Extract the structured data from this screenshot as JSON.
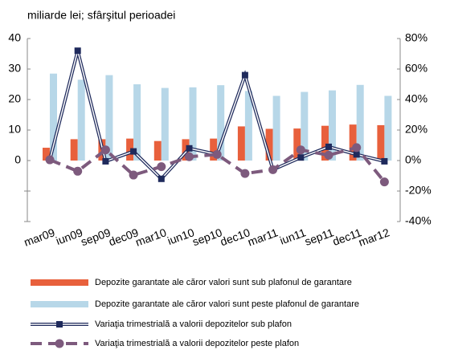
{
  "chart_data": {
    "type": "bar-line",
    "title": "miliarde lei; sfârşitul perioadei",
    "categories": [
      "mar09",
      "iun09",
      "sep09",
      "dec09",
      "mar10",
      "iun10",
      "sep10",
      "dec10",
      "mar11",
      "iun11",
      "sep11",
      "dec11",
      "mar12"
    ],
    "series": [
      {
        "name": "Depozite garantate ale căror valori sunt sub plafonul de garantare",
        "type": "bar",
        "color": "#e8603c",
        "values": [
          4.2,
          7,
          7,
          7.2,
          6.4,
          7,
          7.2,
          11.2,
          10.4,
          10.5,
          11.4,
          11.8,
          11.6
        ]
      },
      {
        "name": "Depozite garantate ale căror valori sunt peste plafonul de garantare",
        "type": "bar",
        "color": "#b7d7e8",
        "values": [
          28.5,
          26.5,
          28,
          25,
          23.8,
          24,
          24.7,
          22.8,
          21.2,
          22.5,
          23,
          24.8,
          21.2
        ]
      },
      {
        "name": "Variaţia trimestrială a valorii depozitelor sub plafon",
        "type": "line",
        "axis": "y2",
        "color": "#1f2a5c",
        "values": [
          0.5,
          72,
          -0.5,
          6,
          -12,
          8,
          4,
          56,
          -6,
          2,
          9,
          4,
          -0.5
        ]
      },
      {
        "name": "Variaţia trimestrială a valorii depozitelor peste plafon",
        "type": "line",
        "axis": "y2",
        "color": "#7d5a7d",
        "dashed": true,
        "values": [
          0.5,
          -7,
          7,
          -9.5,
          -4,
          2.5,
          4,
          -8.5,
          -6,
          7,
          3.5,
          8.5,
          -14
        ]
      }
    ],
    "ylim": [
      -20,
      40
    ],
    "yticks": [
      0,
      10,
      20,
      30,
      40
    ],
    "yticks_unlabeled": [
      -10,
      -20
    ],
    "y2lim": [
      -40,
      80
    ],
    "y2ticks": [
      {
        "value": -40,
        "label": "-40%"
      },
      {
        "value": -20,
        "label": "-20%"
      },
      {
        "value": 0,
        "label": "0%"
      },
      {
        "value": 20,
        "label": "20%"
      },
      {
        "value": 40,
        "label": "40%"
      },
      {
        "value": 60,
        "label": "60%"
      },
      {
        "value": 80,
        "label": "80%"
      }
    ]
  }
}
